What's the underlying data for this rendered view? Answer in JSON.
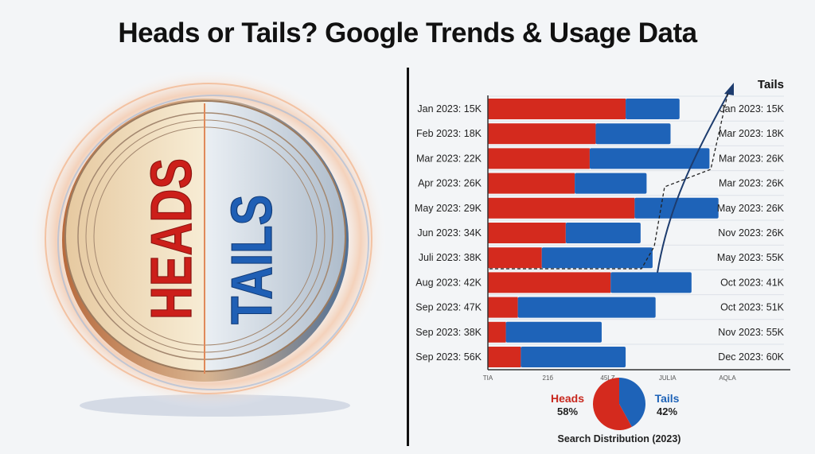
{
  "title": "Heads or Tails? Google Trends & Usage Data",
  "coin": {
    "heads_text": "HEADS",
    "tails_text": "TAILS"
  },
  "colors": {
    "heads": "#d42a1e",
    "tails": "#1e63b8"
  },
  "chart_data": [
    {
      "type": "bar",
      "orientation": "horizontal",
      "stacked": true,
      "legend_title": "Tails",
      "left_labels": [
        "Jan 2023: 15K",
        "Feb 2023: 18K",
        "Mar 2023: 22K",
        "Apr 2023: 26K",
        "May 2023: 29K",
        "Jun 2023: 34K",
        "Juli 2023: 38K",
        "Aug 2023: 42K",
        "Sep 2023: 47K",
        "Sep 2023: 38K",
        "Sep 2023: 56K"
      ],
      "right_labels": [
        "Jan 2023: 15K",
        "Mar 2023: 18K",
        "Mar 2023: 26K",
        "Mar 2023: 26K",
        "May 2023: 26K",
        "Nov 2023: 26K",
        "May 2023: 55K",
        "Oct 2023: 41K",
        "Oct 2023: 51K",
        "Nov 2023: 55K",
        "Dec 2023: 60K"
      ],
      "series": [
        {
          "color": "#d42a1e",
          "values": [
            46,
            36,
            34,
            29,
            49,
            26,
            18,
            41,
            10,
            6,
            11
          ]
        },
        {
          "color": "#1e63b8",
          "values": [
            18,
            25,
            40,
            24,
            28,
            25,
            37,
            27,
            46,
            32,
            35
          ]
        }
      ],
      "x_ticks": [
        0,
        20,
        40,
        60,
        80
      ],
      "x_tick_labels": [
        "TIA",
        "21б",
        "45LZ",
        "JULIA",
        "AQLA"
      ],
      "xlim": [
        0,
        101
      ],
      "grid": true
    },
    {
      "type": "pie",
      "title": "Search Distribution (2023)",
      "categories": [
        "Heads",
        "Tails"
      ],
      "values": [
        58,
        42
      ],
      "value_labels": [
        "58%",
        "42%"
      ],
      "colors": [
        "#d42a1e",
        "#1e63b8"
      ]
    }
  ]
}
